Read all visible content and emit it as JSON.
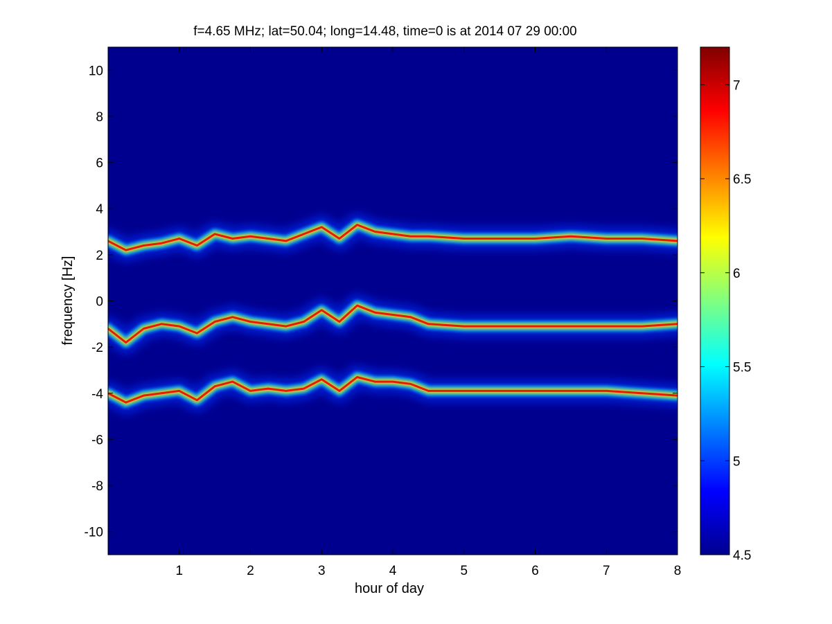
{
  "chart_data": {
    "type": "heatmap",
    "title": "f=4.65 MHz;  lat=50.04; long=14.48, time=0 is at 2014 07 29 00:00",
    "xlabel": "hour of day",
    "ylabel": "frequency [Hz]",
    "xlim": [
      0,
      8
    ],
    "ylim": [
      -11,
      11
    ],
    "x_ticks": [
      1,
      2,
      3,
      4,
      5,
      6,
      7,
      8
    ],
    "y_ticks": [
      -10,
      -8,
      -6,
      -4,
      -2,
      0,
      2,
      4,
      6,
      8,
      10
    ],
    "colormap": "jet",
    "background_color": "#00008f",
    "colorbar": {
      "range": [
        4.5,
        7.2
      ],
      "ticks": [
        4.5,
        5,
        5.5,
        6,
        6.5,
        7
      ]
    },
    "series": [
      {
        "hour": [
          0,
          0.25,
          0.5,
          0.75,
          1.0,
          1.25,
          1.5,
          1.75,
          2.0,
          2.25,
          2.5,
          2.75,
          3.0,
          3.25,
          3.5,
          3.75,
          4.0,
          4.25,
          4.5,
          5.0,
          5.5,
          6.0,
          6.5,
          7.0,
          7.5,
          8.0
        ],
        "frequency_hz": [
          2.6,
          2.2,
          2.4,
          2.5,
          2.7,
          2.4,
          2.9,
          2.7,
          2.8,
          2.7,
          2.6,
          2.9,
          3.2,
          2.7,
          3.3,
          3.0,
          2.9,
          2.8,
          2.8,
          2.7,
          2.7,
          2.7,
          2.8,
          2.7,
          2.7,
          2.6
        ]
      },
      {
        "hour": [
          0,
          0.25,
          0.5,
          0.75,
          1.0,
          1.25,
          1.5,
          1.75,
          2.0,
          2.25,
          2.5,
          2.75,
          3.0,
          3.25,
          3.5,
          3.75,
          4.0,
          4.25,
          4.5,
          5.0,
          5.5,
          6.0,
          6.5,
          7.0,
          7.5,
          8.0
        ],
        "frequency_hz": [
          -1.2,
          -1.8,
          -1.2,
          -1.0,
          -1.1,
          -1.4,
          -0.9,
          -0.7,
          -0.9,
          -1.0,
          -1.1,
          -0.9,
          -0.4,
          -0.9,
          -0.2,
          -0.5,
          -0.6,
          -0.7,
          -1.0,
          -1.1,
          -1.1,
          -1.1,
          -1.1,
          -1.1,
          -1.1,
          -1.0
        ]
      },
      {
        "hour": [
          0,
          0.25,
          0.5,
          0.75,
          1.0,
          1.25,
          1.5,
          1.75,
          2.0,
          2.25,
          2.5,
          2.75,
          3.0,
          3.25,
          3.5,
          3.75,
          4.0,
          4.25,
          4.5,
          5.0,
          5.5,
          6.0,
          6.5,
          7.0,
          7.5,
          8.0
        ],
        "frequency_hz": [
          -4.0,
          -4.4,
          -4.1,
          -4.0,
          -3.9,
          -4.3,
          -3.7,
          -3.5,
          -3.9,
          -3.8,
          -3.9,
          -3.8,
          -3.4,
          -3.9,
          -3.3,
          -3.5,
          -3.5,
          -3.6,
          -3.9,
          -3.9,
          -3.9,
          -3.9,
          -3.9,
          -3.9,
          -4.0,
          -4.1
        ]
      }
    ]
  }
}
